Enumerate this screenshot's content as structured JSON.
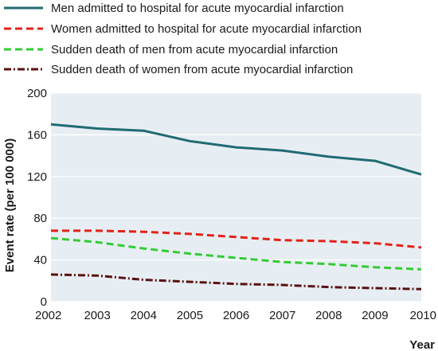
{
  "chart_data": {
    "type": "line",
    "title": "",
    "xlabel": "Year",
    "ylabel": "Event rate (per 100 000)",
    "x": [
      2002,
      2003,
      2004,
      2005,
      2006,
      2007,
      2008,
      2009,
      2010
    ],
    "x_tick_labels": [
      "2002",
      "2003",
      "2004",
      "2005",
      "2006",
      "2007",
      "2008",
      "2009",
      "2010"
    ],
    "y_ticks": [
      0,
      40,
      80,
      120,
      160,
      200
    ],
    "y_tick_labels": [
      "0",
      "40",
      "80",
      "120",
      "160",
      "200"
    ],
    "xlim": [
      2002,
      2010
    ],
    "ylim": [
      0,
      200
    ],
    "grid": "horizontal",
    "background": "#e7eef3",
    "legend_position": "top",
    "series": [
      {
        "name": "Men admitted to hospital for acute myocardial infarction",
        "values": [
          170,
          166,
          164,
          154,
          148,
          145,
          139,
          135,
          122
        ],
        "color": "#1f6b73",
        "style": "solid"
      },
      {
        "name": "Women admitted to hospital for acute myocardial infarction",
        "values": [
          68,
          68,
          67,
          65,
          62,
          59,
          58,
          56,
          52
        ],
        "color": "#e32219",
        "style": "dashed"
      },
      {
        "name": "Sudden death of men from acute myocardial infarction",
        "values": [
          61,
          57,
          51,
          46,
          42,
          38,
          36,
          33,
          31
        ],
        "color": "#33cc33",
        "style": "dashed"
      },
      {
        "name": "Sudden death of women from acute myocardial infarction",
        "values": [
          26,
          25,
          21,
          19,
          17,
          16,
          14,
          13,
          12
        ],
        "color": "#5a1212",
        "style": "dashdot"
      }
    ]
  }
}
